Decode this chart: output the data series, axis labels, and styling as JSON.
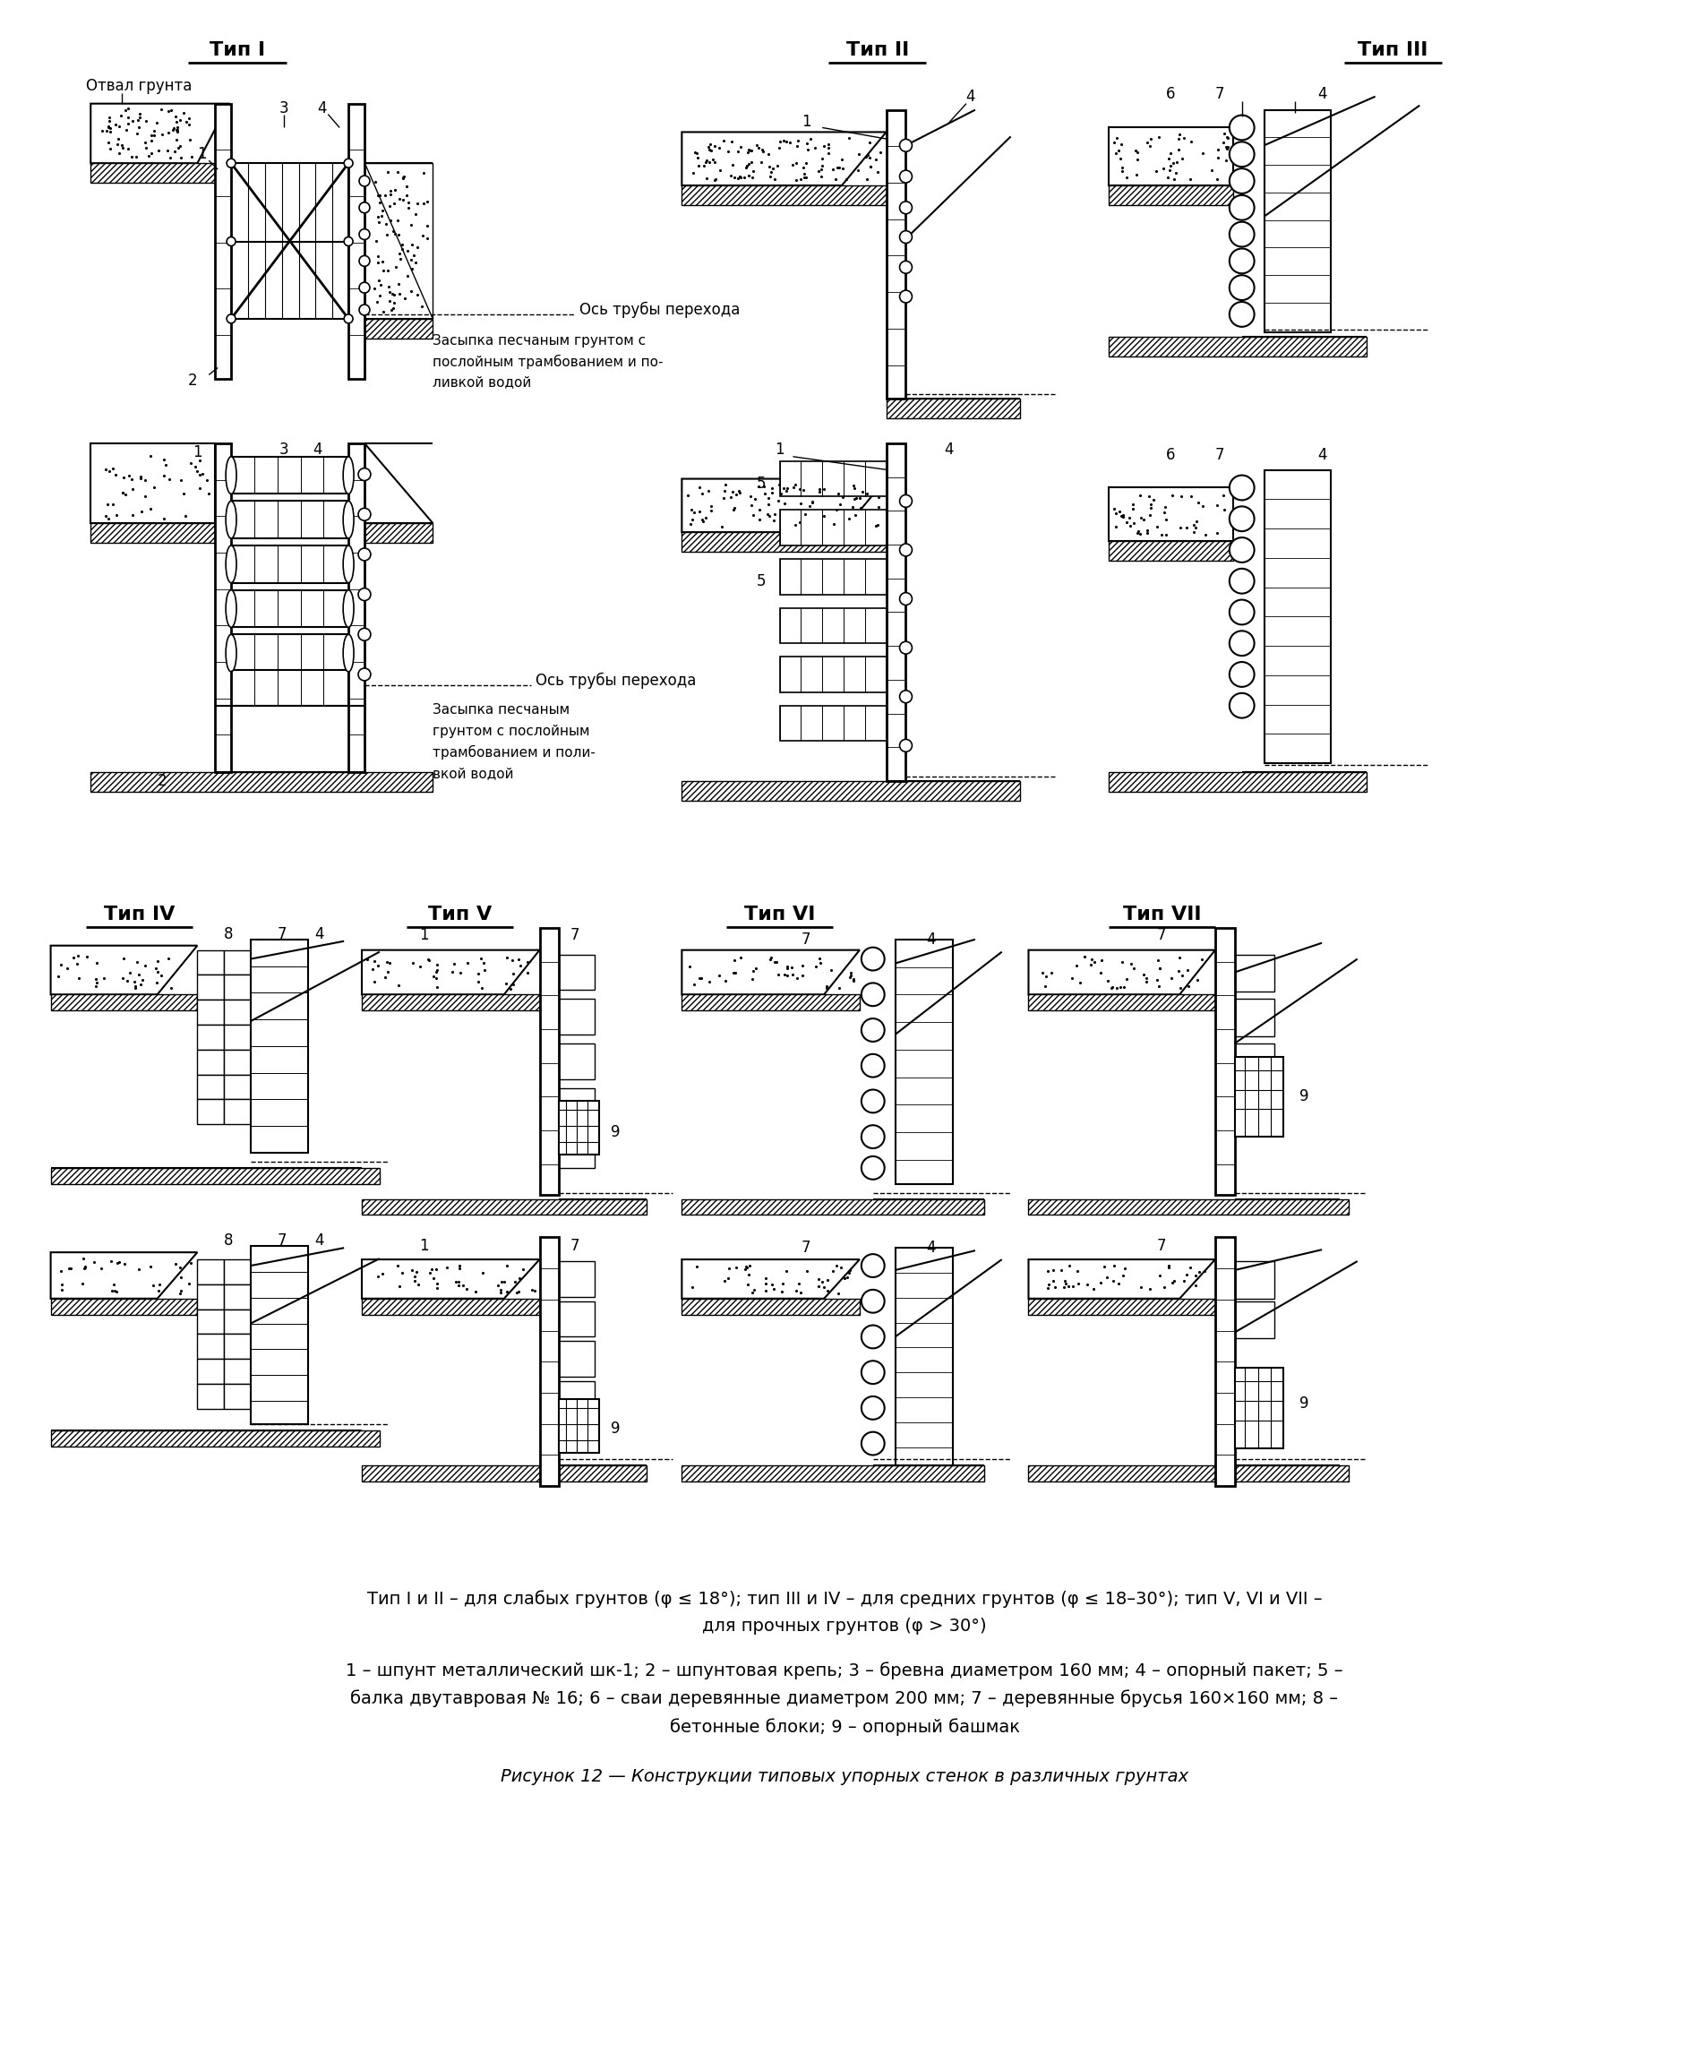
{
  "title_main": "Рисунок 12 — Конструкции типовых упорных стенок в различных грунтах",
  "legend_line1": "1 – шпунт металлический шк-1; 2 – шпунтовая крепь; 3 – бревна диаметром 160 мм; 4 – опорный пакет; 5 –",
  "legend_line2": "балка двутавровая № 16; 6 – сваи деревянные диаметром 200 мм; 7 – деревянные брусья 160×160 мм; 8 –",
  "legend_line3": "бетонные блоки; 9 – опорный башмак",
  "type_note": "Тип I и II – для слабых грунтов (φ ≤ 18°); тип III и IV – для средних грунтов (φ ≤ 18–30°); тип V, VI и VII –",
  "type_note2": "для прочных грунтов (φ > 30°)",
  "bg_color": "#ffffff"
}
